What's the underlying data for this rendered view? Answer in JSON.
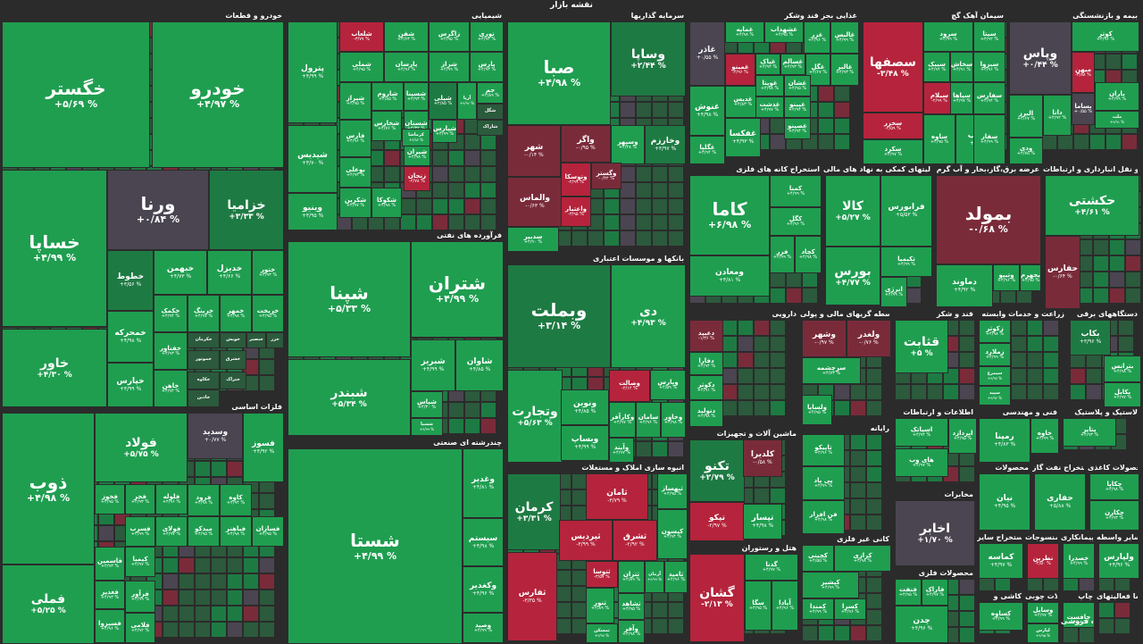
{
  "page_title": "نقشه بازار",
  "colors": {
    "bg": "#2b2b2b",
    "strong_green": "#1f9e50",
    "green": "#1e7a43",
    "dark_green": "#2b5a3c",
    "neutral": "#4a4550",
    "red": "#b5243c",
    "dark_red": "#7a2b3a"
  },
  "sections": [
    {
      "label": "خودرو و قطعات",
      "cells": [
        {
          "n": "خگستر",
          "v": "+۵/۶۹ %"
        },
        {
          "n": "خودرو",
          "v": "+۴/۹۷ %"
        },
        {
          "n": "خساپا",
          "v": "+۴/۹۹ %"
        },
        {
          "n": "ورنا",
          "v": "+۰/۸۴ %"
        },
        {
          "n": "خزامیا",
          "v": "+۳/۳۳ %"
        },
        {
          "n": "خاور",
          "v": "+۴/۳۰ %"
        },
        {
          "n": "خطوط",
          "v": "+۳/۵۶ %"
        },
        {
          "n": "خبهمن",
          "v": "+۴/۷۳ %"
        },
        {
          "n": "خدیزل",
          "v": "+۴/۶۶ %"
        },
        {
          "n": "ختور",
          "v": "+۴/۹۳ %"
        },
        {
          "n": "خمحرکه",
          "v": "+۴/۹۸ %"
        },
        {
          "n": "خپارس",
          "v": "+۴/۹۹ %"
        },
        {
          "n": "خکمک",
          "v": "+۴/۹۴ %"
        },
        {
          "n": "خرینگ",
          "v": "+۴/۹۷ %"
        },
        {
          "n": "خمهر",
          "v": "+۴/۹۸ %"
        },
        {
          "n": "خریخت",
          "v": "+۴/۹۵ %"
        },
        {
          "n": "خفناور",
          "v": "+۴/۹۳ %"
        },
        {
          "n": "خاهن",
          "v": "+۴/۹۴ %"
        },
        {
          "n": "خکرمان",
          "v": ""
        },
        {
          "n": "خویش",
          "v": ""
        },
        {
          "n": "خنصیر",
          "v": ""
        },
        {
          "n": "خموتور",
          "v": ""
        },
        {
          "n": "خکاوه",
          "v": ""
        },
        {
          "n": "خشرق",
          "v": ""
        },
        {
          "n": "خزر",
          "v": ""
        },
        {
          "n": "خاذین",
          "v": ""
        },
        {
          "n": "ختراک",
          "v": ""
        }
      ]
    },
    {
      "label": "شیمیایی",
      "cells": [
        {
          "n": "پترول",
          "v": "+۴/۹۹ %"
        },
        {
          "n": "شلعاب",
          "v": "-۳/۷۷ %"
        },
        {
          "n": "شفن",
          "v": "+۴/۶۳ %"
        },
        {
          "n": "زاگرس",
          "v": "+۴/۹۵ %"
        },
        {
          "n": "نوری",
          "v": "+۴/۹۲ %"
        },
        {
          "n": "شملی",
          "v": "+۴/۹۵ %"
        },
        {
          "n": "پارسان",
          "v": "+۴/۹۶ %"
        },
        {
          "n": "شراز",
          "v": "+۴/۹۹ %"
        },
        {
          "n": "پارس",
          "v": "+۴/۹۳ %"
        },
        {
          "n": "شیدیس",
          "v": "+۴/۷۰ %"
        },
        {
          "n": "شیراز",
          "v": "+۴/۹۵ %"
        },
        {
          "n": "شاروم",
          "v": "+۴/۸۵ %"
        },
        {
          "n": "شسینا",
          "v": "+۴/۹۳ %"
        },
        {
          "n": "شپلی",
          "v": "+۲/۸۵ %"
        },
        {
          "n": "آریا",
          "v": "+۴/۹۶ %"
        },
        {
          "n": "جم",
          "v": "+۴/۸۹ %"
        },
        {
          "n": "فارس",
          "v": "+۴/۹۶ %"
        },
        {
          "n": "شستان",
          "v": "+۴/۳۲ %"
        },
        {
          "n": "شپارس",
          "v": "+۴/۹۹ %"
        },
        {
          "n": "شگل",
          "v": ""
        },
        {
          "n": "شاراک",
          "v": ""
        },
        {
          "n": "بوعلی",
          "v": "+۴/۹۳ %"
        },
        {
          "n": "شخارس",
          "v": "+۴/۷۶ %"
        },
        {
          "n": "شیران",
          "v": "+۴/۹۸ %"
        },
        {
          "n": "کرماشا",
          "v": "+۴/۸۴ %"
        },
        {
          "n": "وینیو",
          "v": "+۴/۹۵ %"
        },
        {
          "n": "شکربن",
          "v": "+۴/۹۷ %"
        },
        {
          "n": "شکوکا",
          "v": "+۴/۹۸ %"
        },
        {
          "n": "زنجان",
          "v": "-۲/۷۸ %"
        }
      ]
    },
    {
      "label": "سرمایه گذاریها",
      "cells": [
        {
          "n": "صبا",
          "v": "+۴/۹۸ %"
        },
        {
          "n": "وساپا",
          "v": "+۲/۴۴ %"
        },
        {
          "n": "شهر",
          "v": "-۰/۱۴ %"
        },
        {
          "n": "واگر",
          "v": "-۰/۹۵ %"
        },
        {
          "n": "وسپهر",
          "v": "+۴/۲۸ %"
        },
        {
          "n": "وخارزم",
          "v": "+۳/۹۷ %"
        },
        {
          "n": "والماس",
          "v": "-۰/۶۳ %"
        },
        {
          "n": "وتوسکا",
          "v": "-۲/۹۹ %"
        },
        {
          "n": "وگستر",
          "v": "-۰/۴۲ %"
        },
        {
          "n": "واعتبار",
          "v": "-۳/۹۵ %"
        },
        {
          "n": "سدبیر",
          "v": "+۴/۹۰ %"
        }
      ]
    },
    {
      "label": "غذایی بجز قند وشکر",
      "cells": [
        {
          "n": "غاذر",
          "v": "+۰/۵۵ %"
        },
        {
          "n": "غمایه",
          "v": "+۴/۹۸ %"
        },
        {
          "n": "غشهداب",
          "v": "+۴/۹۵ %"
        },
        {
          "n": "غزر",
          "v": "+۴/۹۶ %"
        },
        {
          "n": "غنوش",
          "v": "+۴/۹۸ %"
        },
        {
          "n": "غمینو",
          "v": "-۴/۹۶ %"
        },
        {
          "n": "غپاک",
          "v": "+۴/۹۲ %"
        },
        {
          "n": "غسالم",
          "v": "+۴/۹۳ %"
        },
        {
          "n": "غگل",
          "v": "+۴/۶۷ %"
        },
        {
          "n": "غالبر",
          "v": "+۴/۹۳ %"
        },
        {
          "n": "غدیس",
          "v": "+۴/۸۳ %"
        },
        {
          "n": "غویتا",
          "v": "+۴/۹۸ %"
        },
        {
          "n": "غشان",
          "v": "+۴/۹۵ %"
        },
        {
          "n": "غالبس",
          "v": "+۴/۹۹ %"
        },
        {
          "n": "غگلپا",
          "v": "+۴/۹۴ %"
        },
        {
          "n": "غفکسا",
          "v": "+۴/۹۳ %"
        },
        {
          "n": "غدشت",
          "v": "+۴/۹۷ %"
        },
        {
          "n": "غپینو",
          "v": "+۴/۹۴ %"
        },
        {
          "n": "غصینو",
          "v": "+۴/۹۴ %"
        }
      ]
    },
    {
      "label": "سیمان آهک گچ",
      "cells": [
        {
          "n": "سصفها",
          "v": "-۳/۴۸ %"
        },
        {
          "n": "سرود",
          "v": "+۴/۹۹ %"
        },
        {
          "n": "سیتا",
          "v": "+۴/۹۲ %"
        },
        {
          "n": "سبزوا",
          "v": "+۴/۹۶ %"
        },
        {
          "n": "سخزر",
          "v": "-۲/۵۹ %"
        },
        {
          "n": "سیلام",
          "v": "-۲/۹۹ %"
        },
        {
          "n": "سکرد",
          "v": "+۴/۹۷ %"
        },
        {
          "n": "ساوه",
          "v": "+۴/۹۵ %"
        },
        {
          "n": "سبیک",
          "v": "+۴/۹۴ %"
        },
        {
          "n": "سخاش",
          "v": "+۴/۹۱ %"
        },
        {
          "n": "سپاها",
          "v": "+۴/۹۷ %"
        },
        {
          "n": "سفارس",
          "v": "+۴/۹۴ %"
        },
        {
          "n": "سغرب",
          "v": "+۴/۹۵ %"
        },
        {
          "n": "سفار",
          "v": "+۴/۹۹ %"
        }
      ]
    },
    {
      "label": "بیمه و بازنشستگی",
      "cells": [
        {
          "n": "وپاس",
          "v": "+۰/۴۴ %"
        },
        {
          "n": "کوثر",
          "v": "+۴/۹۶ %"
        },
        {
          "n": "میهن",
          "v": "-۳/۸۸ %"
        },
        {
          "n": "دانا",
          "v": "+۴/۹۲ %"
        },
        {
          "n": "بساما",
          "v": "+۰/۵۵ %"
        },
        {
          "n": "البرز",
          "v": "+۴/۶۷ %"
        },
        {
          "n": "ودی",
          "v": "+۴/۷۵ %"
        },
        {
          "n": "باران",
          "v": "+۴/۹۹ %"
        },
        {
          "n": "ملت",
          "v": "+۴/۹۱ %"
        }
      ]
    },
    {
      "label": "فلزات اساسی",
      "cells": [
        {
          "n": "ذوب",
          "v": "+۴/۹۸ %"
        },
        {
          "n": "فولاد",
          "v": "+۵/۷۵ %"
        },
        {
          "n": "فملی",
          "v": "+۵/۲۵ %"
        },
        {
          "n": "وسدید",
          "v": "+۰/۷۷ %"
        },
        {
          "n": "فسوز",
          "v": "+۴/۹۲ %"
        },
        {
          "n": "فخوز",
          "v": "+۴/۹۵ %"
        },
        {
          "n": "فجر",
          "v": "+۴/۹۳ %"
        },
        {
          "n": "فلوله",
          "v": "+۴/۹۶ %"
        },
        {
          "n": "فرود",
          "v": "+۴/۹۸ %"
        },
        {
          "n": "کاوه",
          "v": "+۴/۹۴ %"
        },
        {
          "n": "فسرب",
          "v": "+۴/۹۹ %"
        },
        {
          "n": "فولای",
          "v": "+۴/۹۷ %"
        },
        {
          "n": "فسازان",
          "v": "+۴/۹۵ %"
        },
        {
          "n": "کیمیا",
          "v": "+۴/۹۷ %"
        },
        {
          "n": "فاسمین",
          "v": "+۴/۹۳ %"
        },
        {
          "n": "فغدیر",
          "v": "+۴/۹۳ %"
        },
        {
          "n": "فسپزوا",
          "v": "+۴/۹۶ %"
        },
        {
          "n": "فرآور",
          "v": "+۴/۹۹ %"
        },
        {
          "n": "فلامی",
          "v": "+۴/۹۲ %"
        },
        {
          "n": "میدکو",
          "v": "+۴/۹۵ %"
        },
        {
          "n": "فباهنر",
          "v": "+۴/۹۸ %"
        }
      ]
    },
    {
      "label": "فرآورده های نفتی",
      "cells": [
        {
          "n": "شپنا",
          "v": "+۵/۳۳ %"
        },
        {
          "n": "شتران",
          "v": "+۴/۹۹ %"
        },
        {
          "n": "شبندر",
          "v": "+۵/۳۴ %"
        },
        {
          "n": "شبریز",
          "v": "+۴/۹۹ %"
        },
        {
          "n": "شاوان",
          "v": "+۴/۸۵ %"
        },
        {
          "n": "شپاس",
          "v": "+۴/۳۰ %"
        },
        {
          "n": "شسپا",
          "v": "+۴/۹۹ %"
        }
      ]
    },
    {
      "label": "چندرشته ای صنعتی",
      "cells": [
        {
          "n": "شستا",
          "v": "+۴/۹۹ %"
        },
        {
          "n": "وغدیر",
          "v": "+۴/۸۱ %"
        },
        {
          "n": "سیستم",
          "v": "+۴/۹۸ %"
        },
        {
          "n": "وکغدیر",
          "v": "+۴/۹۶ %"
        },
        {
          "n": "وصید",
          "v": "+۴/۹۹ %"
        }
      ]
    },
    {
      "label": "بانکها و موسسات اعتباری",
      "cells": [
        {
          "n": "وبملت",
          "v": "+۳/۱۴ %"
        },
        {
          "n": "دی",
          "v": "+۴/۹۳ %"
        },
        {
          "n": "وتجارت",
          "v": "+۵/۶۳ %"
        },
        {
          "n": "ونوین",
          "v": "+۴/۸۵ %"
        },
        {
          "n": "وصالت",
          "v": "-۲/۱۲ %"
        },
        {
          "n": "وپارس",
          "v": "+۴/۵۹ %"
        },
        {
          "n": "وکارآفر",
          "v": "+۴/۹۷ %"
        },
        {
          "n": "سامان",
          "v": "+۴/۹۶ %"
        },
        {
          "n": "وخاور",
          "v": "+۴/۹۸ %"
        },
        {
          "n": "وبساپ",
          "v": "+۴/۹۹ %"
        },
        {
          "n": "وآیند",
          "v": "+۴/۹۷ %"
        }
      ]
    },
    {
      "label": "استخراج کانه های فلزی",
      "cells": [
        {
          "n": "کاما",
          "v": "+۶/۹۸ %"
        },
        {
          "n": "کمنا",
          "v": "+۴/۹۹ %"
        },
        {
          "n": "کگل",
          "v": "+۴/۹۶ %"
        },
        {
          "n": "فزر",
          "v": "+۴/۹۹ %"
        },
        {
          "n": "کچاد",
          "v": "+۴/۹۸ %"
        },
        {
          "n": "ومعادن",
          "v": "+۴/۸۱ %"
        }
      ]
    },
    {
      "label": "فعالیتهای کمکی به نهاد های مالی",
      "cells": [
        {
          "n": "کالا",
          "v": "+۵/۲۷ %"
        },
        {
          "n": "فرابورس",
          "v": "+۵/۵۳ %"
        },
        {
          "n": "تکیمیا",
          "v": "+۴/۹۹ %"
        },
        {
          "n": "انرژی",
          "v": "+۴/۹۹ %"
        },
        {
          "n": "بورس",
          "v": "+۴/۷۷ %"
        }
      ]
    },
    {
      "label": "عرضه برق،گاز،بخار و آب گرم",
      "cells": [
        {
          "n": "بمولد",
          "v": "-۰/۶۸ %"
        },
        {
          "n": "دماوند",
          "v": "+۴/۹۲ %"
        },
        {
          "n": "وتیپو",
          "v": "+۴/۹۶ %"
        },
        {
          "n": "بجهرم",
          "v": "+۴/۹۵ %"
        }
      ]
    },
    {
      "label": "حمل و نقل انبارداری و ارتباطات",
      "cells": [
        {
          "n": "حکشتی",
          "v": "+۴/۶۱ %"
        },
        {
          "n": "حفارس",
          "v": "-۰/۶۴ %"
        }
      ]
    },
    {
      "label": "دارویی",
      "cells": [
        {
          "n": "دعبید",
          "v": "-۱/۳۶ %"
        },
        {
          "n": "دفارا",
          "v": "+۴/۹۴ %"
        },
        {
          "n": "دکوثر",
          "v": "+۴/۹۱ %"
        },
        {
          "n": "دتولید",
          "v": "+۴/۹۸ %"
        }
      ]
    },
    {
      "label": "واسطه گریهای مالی و پولی",
      "cells": [
        {
          "n": "وشهر",
          "v": "-۰/۹۷ %"
        },
        {
          "n": "ولغدر",
          "v": "-۰/۷۶ %"
        },
        {
          "n": "سرچشمه",
          "v": "+۴/۷۳ %"
        },
        {
          "n": "ولساپا",
          "v": "+۴/۹۵ %"
        },
        {
          "n": "قشهد",
          "v": "-۲/۶۲ %"
        }
      ]
    },
    {
      "label": "قند و شکر",
      "cells": [
        {
          "n": "قثابت",
          "v": "+۵ %"
        }
      ]
    },
    {
      "label": "زراعت و خدمات وابسته",
      "cells": [
        {
          "n": "زکوثر",
          "v": "+۴/۹۸ %"
        },
        {
          "n": "زملارد",
          "v": "+۴/۹۹ %"
        },
        {
          "n": "سیمرغ",
          "v": "+۴/۹۷ %"
        },
        {
          "n": "سپید",
          "v": "+۴/۹۴ %"
        }
      ]
    },
    {
      "label": "دستگاههای برقی",
      "cells": [
        {
          "n": "بکاب",
          "v": "+۳/۹۶ %"
        },
        {
          "n": "بترانس",
          "v": "+۴/۹۸ %"
        },
        {
          "n": "بنیرو",
          "v": "+۴/۹۹ %"
        },
        {
          "n": "بکابل",
          "v": "+۴/۹۷ %"
        }
      ]
    },
    {
      "label": "ماشین آلات و تجهیزات",
      "cells": [
        {
          "n": "تکنو",
          "v": "+۲/۷۹ %"
        },
        {
          "n": "کلدیرا",
          "v": "-۰/۵۸ %"
        },
        {
          "n": "تپکو",
          "v": "-۲/۹۷ %"
        },
        {
          "n": "تپسار",
          "v": "+۴/۹۸ %"
        }
      ]
    },
    {
      "label": "رایانه",
      "cells": [
        {
          "n": "تاپیکو",
          "v": "+۴/۹۶ %"
        },
        {
          "n": "پی پاد",
          "v": "+۴/۹۹ %"
        },
        {
          "n": "فن افزار",
          "v": "+۴/۹۸ %"
        }
      ]
    },
    {
      "label": "اطلاعات و ارتباطات",
      "cells": [
        {
          "n": "اسیاتک",
          "v": "+۴/۹۴ %"
        },
        {
          "n": "های وب",
          "v": "+۴/۹۷ %"
        },
        {
          "n": "اپردازد",
          "v": "+۴/۹۵ %"
        }
      ]
    },
    {
      "label": "فنی و مهندسی",
      "cells": [
        {
          "n": "رمپنا",
          "v": "+۴/۸۳ %"
        },
        {
          "n": "خاوه",
          "v": "+۴/۹۹ %"
        }
      ]
    },
    {
      "label": "لاستیک و پلاستیک",
      "cells": [
        {
          "n": "پتایر",
          "v": "+۴/۹۳ %"
        }
      ]
    },
    {
      "label": "انبوه سازی املاک و مستغلات",
      "cells": [
        {
          "n": "کرمان",
          "v": "+۳/۳۱ %"
        },
        {
          "n": "ثامان",
          "v": "-۳/۷۹ %"
        },
        {
          "n": "ثپردیس",
          "v": "-۳/۹۹ %"
        },
        {
          "n": "ثشرق",
          "v": "-۲/۹۲ %"
        },
        {
          "n": "ثبهساز",
          "v": "+۴/۹۵ %"
        },
        {
          "n": "کیسون",
          "v": "+۴/۹۴ %"
        },
        {
          "n": "ثفارس",
          "v": "-۳/۳۵ %"
        },
        {
          "n": "ثتوسا",
          "v": "-۳/۵۷ %"
        },
        {
          "n": "ثنور",
          "v": "+۴/۸۹ %"
        },
        {
          "n": "ثتران",
          "v": "+۴/۸۹ %"
        },
        {
          "n": "آرمان",
          "v": "+۴/۹۹ %"
        },
        {
          "n": "ثامید",
          "v": "+۴/۹۶ %"
        },
        {
          "n": "ثشاهد",
          "v": "+۴/۹۵ %"
        },
        {
          "n": "ثمسکن",
          "v": "+۴/۹۷ %"
        },
        {
          "n": "وآفر",
          "v": "+۴/۹۸ %"
        }
      ]
    },
    {
      "label": "هتل و رستوران",
      "cells": [
        {
          "n": "گشان",
          "v": "-۲/۱۳ %"
        },
        {
          "n": "گدنا",
          "v": "+۴/۹۷ %"
        },
        {
          "n": "سگا",
          "v": "+۴/۹۵ %"
        },
        {
          "n": "آبادا",
          "v": "+۴/۹۶ %"
        }
      ]
    },
    {
      "label": "کانی غیر فلزی",
      "cells": [
        {
          "n": "کچینی",
          "v": "+۴/۵۵ %"
        },
        {
          "n": "کرازی",
          "v": "+۴/۹۸ %"
        },
        {
          "n": "کپشیر",
          "v": "+۴/۹۹ %"
        },
        {
          "n": "کمندا",
          "v": "+۴/۹۹ %"
        },
        {
          "n": "کسرا",
          "v": "+۴/۹۶ %"
        }
      ]
    },
    {
      "label": "مخابرات",
      "cells": [
        {
          "n": "اخابر",
          "v": "+۱/۷۰ %"
        }
      ]
    },
    {
      "label": "محصولات فلزی",
      "cells": [
        {
          "n": "فنفت",
          "v": "+۴/۹۵ %"
        },
        {
          "n": "فاراک",
          "v": "+۴/۹۷ %"
        },
        {
          "n": "چدن",
          "v": "+۴/۹۶ %"
        }
      ]
    },
    {
      "label": "محصولات",
      "cells": [
        {
          "n": "نیان",
          "v": "+۴/۹۵ %"
        }
      ]
    },
    {
      "label": "استخراج نفت گاز",
      "cells": [
        {
          "n": "حفاری",
          "v": "+۵/۸۸ %"
        }
      ]
    },
    {
      "label": "محصولات کاغذی",
      "cells": [
        {
          "n": "چکاپا",
          "v": "+۴/۹۸ %"
        },
        {
          "n": "چکارن",
          "v": "+۴/۹۳ %"
        }
      ]
    },
    {
      "label": "استخراج سایر",
      "cells": [
        {
          "n": "کماسه",
          "v": "+۴/۹۷ %"
        }
      ]
    },
    {
      "label": "منسوجات",
      "cells": [
        {
          "n": "نطرین",
          "v": "-۴/۵۰ %"
        }
      ]
    },
    {
      "label": "پیمانکاری",
      "cells": [
        {
          "n": "خصدرا",
          "v": "+۴/۹۹ %"
        }
      ]
    },
    {
      "label": "سایر واسطه",
      "cells": [
        {
          "n": "ولپارس",
          "v": "+۴/۹۶ %"
        }
      ]
    },
    {
      "label": "کاشی و",
      "cells": [
        {
          "n": "کساوه",
          "v": "+۴/۹۹ %"
        }
      ]
    },
    {
      "label": "چاپ",
      "cells": [
        {
          "n": "چافست",
          "v": "+۴/۹۸ %"
        }
      ]
    },
    {
      "label": "محصولات چوبی",
      "cells": [
        {
          "n": "وسایل",
          "v": "+۴/۹۷ %"
        },
        {
          "n": "لپارس",
          "v": "+۴/۹۵ %"
        }
      ]
    },
    {
      "label": "خرده فروشی",
      "cells": []
    },
    {
      "label": "سا فعالیتهای",
      "cells": []
    }
  ]
}
